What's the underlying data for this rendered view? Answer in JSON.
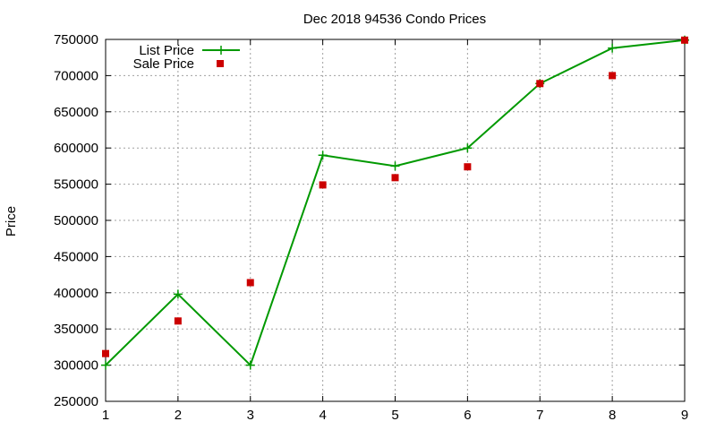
{
  "chart_data": {
    "type": "line",
    "title": "Dec 2018 94536 Condo Prices",
    "xlabel": "",
    "ylabel": "Price",
    "x": [
      1,
      2,
      3,
      4,
      5,
      6,
      7,
      8,
      9
    ],
    "xlim": [
      1,
      9
    ],
    "ylim": [
      250000,
      750000
    ],
    "xticks": [
      "1",
      "2",
      "3",
      "4",
      "5",
      "6",
      "7",
      "8",
      "9"
    ],
    "yticks": [
      "250000",
      "300000",
      "350000",
      "400000",
      "450000",
      "500000",
      "550000",
      "600000",
      "650000",
      "700000",
      "750000"
    ],
    "grid": true,
    "legend_position": "top-left",
    "series": [
      {
        "name": "List Price",
        "style": "line-with-plus-markers",
        "color": "#009900",
        "values": [
          300000,
          398000,
          300000,
          590000,
          575000,
          600000,
          689000,
          738000,
          749000
        ]
      },
      {
        "name": "Sale Price",
        "style": "square-markers",
        "color": "#cc0000",
        "values": [
          316000,
          361000,
          414000,
          549000,
          559000,
          574000,
          689000,
          700000,
          749000
        ]
      }
    ]
  }
}
